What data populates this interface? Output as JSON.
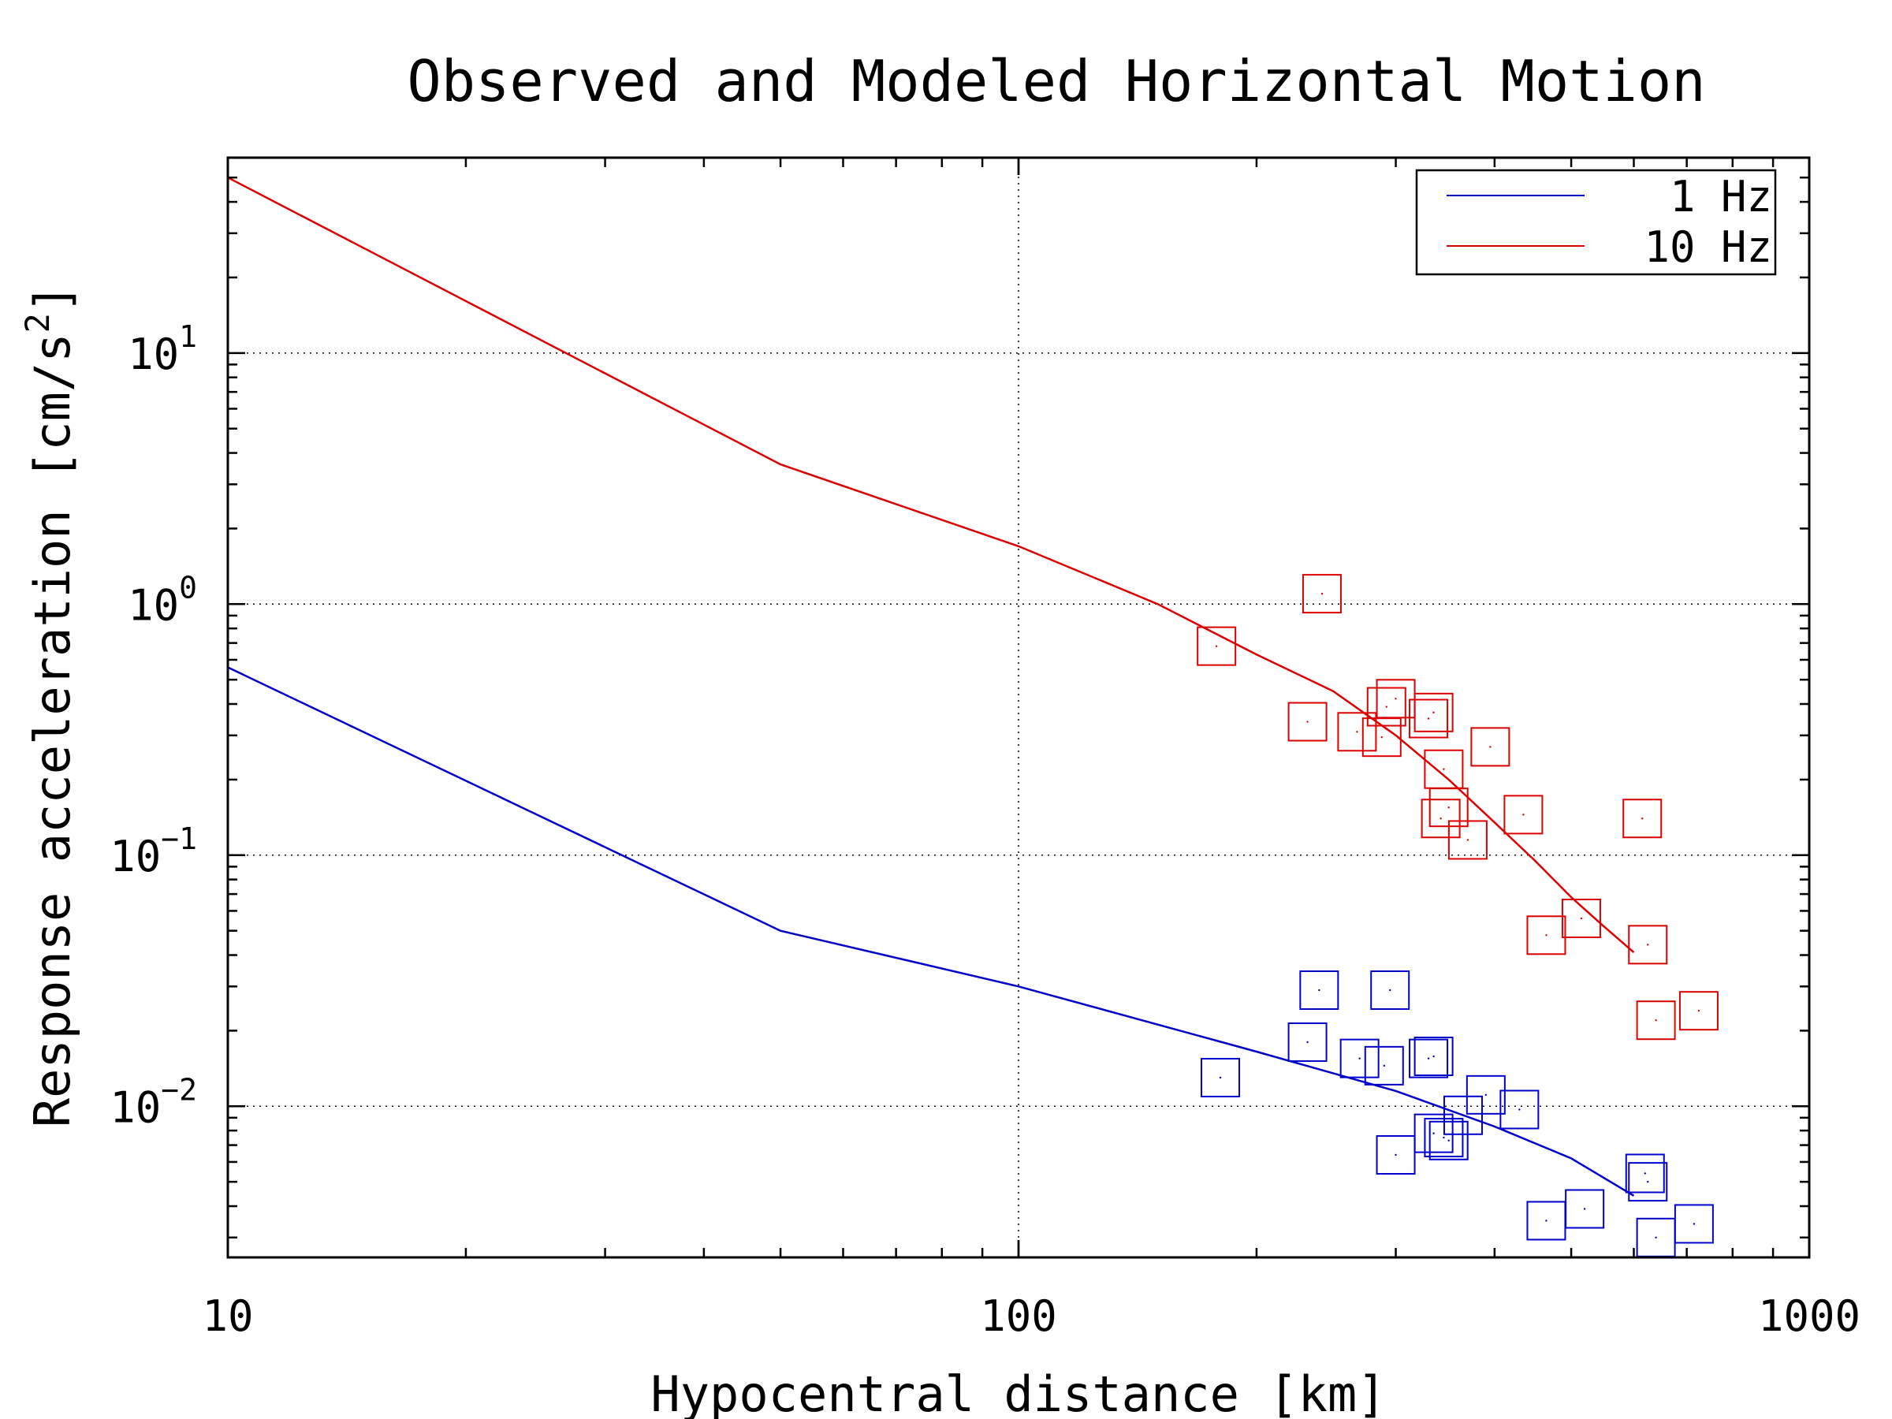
{
  "chart_data": {
    "type": "scatter",
    "title": "Observed and Modeled Horizontal Motion",
    "xlabel": "Hypocentral distance [km]",
    "ylabel_main": "Response acceleration [cm/s",
    "ylabel_sup": "2",
    "ylabel_end": "]",
    "x_scale": "log",
    "y_scale": "log",
    "xlim": [
      10,
      1000
    ],
    "ylim": [
      0.0025,
      60
    ],
    "grid": true,
    "legend_position": "top-right",
    "x_ticks": [
      {
        "value": 10,
        "label": "10"
      },
      {
        "value": 100,
        "label": "100"
      },
      {
        "value": 1000,
        "label": "1000"
      }
    ],
    "y_ticks": [
      {
        "value": 0.01,
        "base": "10",
        "exp": "−2"
      },
      {
        "value": 0.1,
        "base": "10",
        "exp": "−1"
      },
      {
        "value": 1,
        "base": "10",
        "exp": "0"
      },
      {
        "value": 10,
        "base": "10",
        "exp": "1"
      }
    ],
    "colors": {
      "1hz": "#0000cc",
      "10hz": "#dd0000"
    },
    "series": [
      {
        "name": "1 Hz",
        "color": "#0000cc",
        "model_x": [
          10,
          50,
          100,
          200,
          300,
          400,
          500,
          600
        ],
        "model_y": [
          0.56,
          0.05,
          0.03,
          0.0165,
          0.0115,
          0.0083,
          0.0062,
          0.0044
        ],
        "observed": [
          [
            180,
            0.013
          ],
          [
            232,
            0.018
          ],
          [
            240,
            0.029
          ],
          [
            270,
            0.0155
          ],
          [
            290,
            0.0145
          ],
          [
            295,
            0.029
          ],
          [
            300,
            0.0064
          ],
          [
            330,
            0.0155
          ],
          [
            335,
            0.0158
          ],
          [
            335,
            0.0078
          ],
          [
            345,
            0.0075
          ],
          [
            350,
            0.0073
          ],
          [
            365,
            0.0092
          ],
          [
            390,
            0.0111
          ],
          [
            430,
            0.0097
          ],
          [
            465,
            0.0035
          ],
          [
            520,
            0.0039
          ],
          [
            620,
            0.0054
          ],
          [
            625,
            0.005
          ],
          [
            640,
            0.003
          ],
          [
            715,
            0.0034
          ]
        ]
      },
      {
        "name": "10 Hz",
        "color": "#dd0000",
        "model_x": [
          10,
          50,
          100,
          150,
          200,
          250,
          300,
          350,
          400,
          450,
          500,
          550,
          600
        ],
        "model_y": [
          50,
          3.6,
          1.7,
          1.0,
          0.63,
          0.45,
          0.3,
          0.2,
          0.135,
          0.095,
          0.068,
          0.052,
          0.041
        ],
        "observed": [
          [
            178,
            0.68
          ],
          [
            232,
            0.34
          ],
          [
            242,
            1.1
          ],
          [
            268,
            0.31
          ],
          [
            288,
            0.295
          ],
          [
            292,
            0.39
          ],
          [
            300,
            0.42
          ],
          [
            330,
            0.35
          ],
          [
            335,
            0.37
          ],
          [
            345,
            0.22
          ],
          [
            342,
            0.14
          ],
          [
            350,
            0.155
          ],
          [
            370,
            0.115
          ],
          [
            395,
            0.27
          ],
          [
            435,
            0.145
          ],
          [
            465,
            0.048
          ],
          [
            515,
            0.056
          ],
          [
            615,
            0.14
          ],
          [
            625,
            0.044
          ],
          [
            640,
            0.022
          ],
          [
            725,
            0.024
          ]
        ]
      }
    ]
  }
}
